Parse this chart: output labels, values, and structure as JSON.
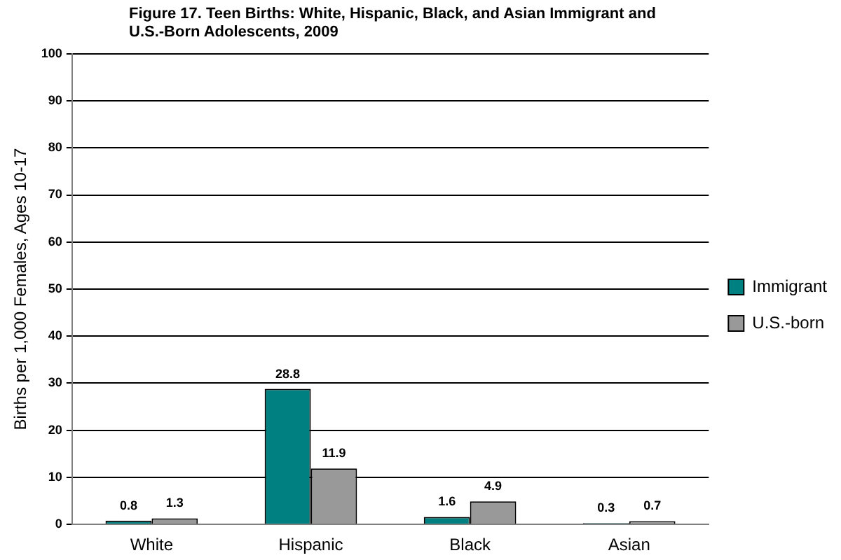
{
  "chart_data": {
    "type": "bar",
    "title": "Figure 17. Teen Births: White, Hispanic, Black, and Asian Immigrant and U.S.-Born Adolescents, 2009",
    "ylabel": "Births per 1,000 Females, Ages 10-17",
    "categories": [
      "White",
      "Hispanic",
      "Black",
      "Asian"
    ],
    "series": [
      {
        "name": "Immigrant",
        "color": "#008080",
        "values": [
          0.8,
          28.8,
          1.6,
          0.3
        ]
      },
      {
        "name": "U.S.-born",
        "color": "#999999",
        "values": [
          1.3,
          11.9,
          4.9,
          0.7
        ]
      }
    ],
    "ylim": [
      0,
      100
    ],
    "yticks": [
      0,
      10,
      20,
      30,
      40,
      50,
      60,
      70,
      80,
      90,
      100
    ],
    "grid": "y",
    "legend": "right",
    "data_labels": true
  }
}
